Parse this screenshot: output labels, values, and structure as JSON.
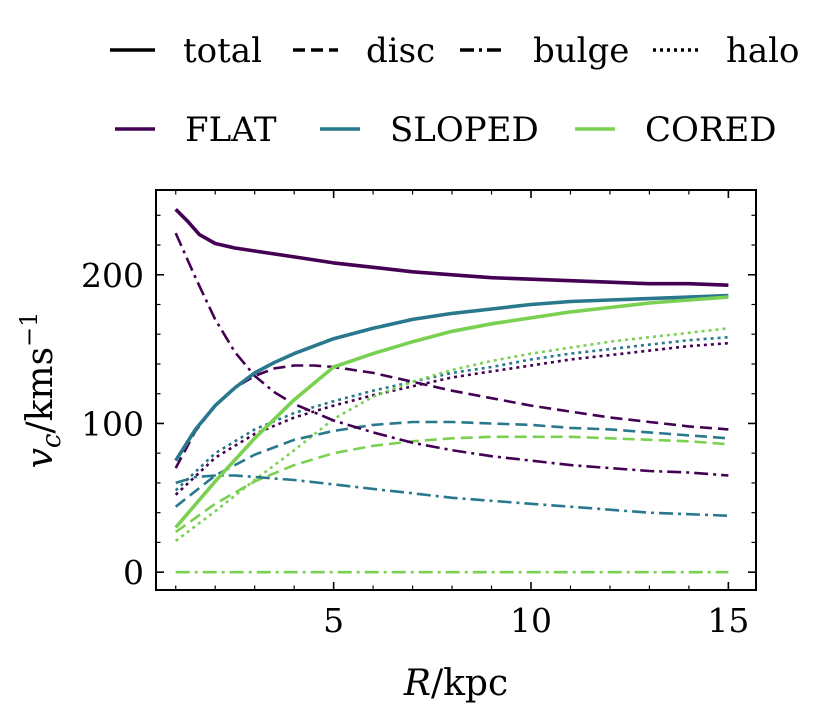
{
  "chart_data": {
    "type": "line",
    "xlabel": {
      "var": "R",
      "unit": "/kpc"
    },
    "ylabel": {
      "var": "v",
      "sub": "c",
      "unit": "/kms",
      "sup": "−1"
    },
    "xlim": [
      0.5,
      15.7
    ],
    "ylim": [
      -12,
      257
    ],
    "xticks": [
      5,
      10,
      15
    ],
    "yticks": [
      0,
      100,
      200
    ],
    "legend_components": [
      {
        "label": "total",
        "style": "solid"
      },
      {
        "label": "disc",
        "style": "dashed"
      },
      {
        "label": "bulge",
        "style": "dashdot"
      },
      {
        "label": "halo",
        "style": "dotted"
      }
    ],
    "legend_models": [
      {
        "label": "FLAT",
        "color": "#440154"
      },
      {
        "label": "SLOPED",
        "color": "#2a788e"
      },
      {
        "label": "CORED",
        "color": "#7ad151"
      }
    ],
    "series": [
      {
        "name": "FLAT halo",
        "model": "FLAT",
        "component": "halo",
        "color": "#440154",
        "style": "dotted",
        "x": [
          1,
          2,
          3,
          4,
          5,
          6,
          7,
          8,
          9,
          10,
          11,
          12,
          13,
          14,
          15
        ],
        "y": [
          52,
          77,
          93,
          104,
          112,
          119,
          125,
          131,
          135,
          139,
          143,
          146,
          149,
          152,
          154
        ]
      },
      {
        "name": "SLOPED halo",
        "model": "SLOPED",
        "component": "halo",
        "color": "#2a788e",
        "style": "dotted",
        "x": [
          1,
          2,
          3,
          4,
          5,
          6,
          7,
          8,
          9,
          10,
          11,
          12,
          13,
          14,
          15
        ],
        "y": [
          55,
          80,
          96,
          107,
          115,
          122,
          128,
          134,
          138,
          143,
          147,
          150,
          153,
          156,
          158
        ]
      },
      {
        "name": "CORED halo",
        "model": "CORED",
        "component": "halo",
        "color": "#7ad151",
        "style": "dotted",
        "x": [
          1,
          2,
          3,
          4,
          5,
          6,
          7,
          8,
          9,
          10,
          11,
          12,
          13,
          14,
          15
        ],
        "y": [
          21,
          41,
          62,
          82,
          103,
          118,
          128,
          136,
          142,
          147,
          151,
          155,
          158,
          161,
          164
        ]
      },
      {
        "name": "FLAT disc",
        "model": "FLAT",
        "component": "disc",
        "color": "#440154",
        "style": "dashed",
        "x": [
          1,
          1.5,
          2,
          2.5,
          3,
          3.5,
          4,
          4.5,
          5,
          6,
          7,
          8,
          9,
          10,
          11,
          12,
          13,
          14,
          15
        ],
        "y": [
          70,
          95,
          112,
          124,
          132,
          137,
          139,
          139,
          138,
          134,
          128,
          122,
          117,
          112,
          108,
          104,
          101,
          98,
          96
        ]
      },
      {
        "name": "SLOPED disc",
        "model": "SLOPED",
        "component": "disc",
        "color": "#2a788e",
        "style": "dashed",
        "x": [
          1,
          2,
          3,
          4,
          5,
          6,
          7,
          8,
          9,
          10,
          11,
          12,
          13,
          14,
          15
        ],
        "y": [
          44,
          65,
          79,
          89,
          95,
          99,
          101,
          101,
          100,
          99,
          97,
          96,
          94,
          92,
          90
        ]
      },
      {
        "name": "CORED disc",
        "model": "CORED",
        "component": "disc",
        "color": "#7ad151",
        "style": "dashed",
        "x": [
          1,
          2,
          3,
          4,
          5,
          6,
          7,
          8,
          9,
          10,
          11,
          12,
          13,
          14,
          15
        ],
        "y": [
          27,
          46,
          61,
          72,
          80,
          85,
          88,
          90,
          91,
          91,
          91,
          90,
          89,
          88,
          86
        ]
      },
      {
        "name": "FLAT bulge",
        "model": "FLAT",
        "component": "bulge",
        "color": "#440154",
        "style": "dashdot",
        "x": [
          1,
          1.5,
          2,
          2.5,
          3,
          3.5,
          4,
          5,
          6,
          7,
          8,
          9,
          10,
          11,
          12,
          13,
          14,
          15
        ],
        "y": [
          228,
          198,
          170,
          148,
          132,
          121,
          113,
          102,
          94,
          87,
          82,
          78,
          75,
          72,
          70,
          68,
          67,
          65
        ]
      },
      {
        "name": "SLOPED bulge",
        "model": "SLOPED",
        "component": "bulge",
        "color": "#2a788e",
        "style": "dashdot",
        "x": [
          1,
          1.5,
          2,
          2.5,
          3,
          4,
          5,
          6,
          7,
          8,
          9,
          10,
          11,
          12,
          13,
          14,
          15
        ],
        "y": [
          60,
          64,
          65,
          65,
          64,
          62,
          59,
          56,
          53,
          50,
          48,
          46,
          44,
          42,
          40,
          39,
          38
        ]
      },
      {
        "name": "CORED bulge",
        "model": "CORED",
        "component": "bulge",
        "color": "#7ad151",
        "style": "dashdot",
        "x": [
          1,
          15
        ],
        "y": [
          0,
          0
        ]
      },
      {
        "name": "FLAT total",
        "model": "FLAT",
        "component": "total",
        "color": "#440154",
        "style": "solid",
        "x": [
          1,
          1.3,
          1.6,
          2,
          2.5,
          3,
          4,
          5,
          6,
          7,
          8,
          9,
          10,
          11,
          12,
          13,
          14,
          15
        ],
        "y": [
          244,
          236,
          227,
          221,
          218,
          216,
          212,
          208,
          205,
          202,
          200,
          198,
          197,
          196,
          195,
          194,
          194,
          193
        ]
      },
      {
        "name": "SLOPED total",
        "model": "SLOPED",
        "component": "total",
        "color": "#2a788e",
        "style": "solid",
        "x": [
          1,
          1.5,
          2,
          2.5,
          3,
          3.5,
          4,
          5,
          6,
          7,
          8,
          9,
          10,
          11,
          12,
          13,
          14,
          15
        ],
        "y": [
          75,
          96,
          112,
          124,
          134,
          141,
          147,
          157,
          164,
          170,
          174,
          177,
          180,
          182,
          183,
          184,
          185,
          186
        ]
      },
      {
        "name": "CORED total",
        "model": "CORED",
        "component": "total",
        "color": "#7ad151",
        "style": "solid",
        "x": [
          1,
          2,
          3,
          4,
          5,
          6,
          7,
          8,
          9,
          10,
          11,
          12,
          13,
          14,
          15
        ],
        "y": [
          30,
          61,
          90,
          116,
          138,
          147,
          155,
          162,
          167,
          171,
          175,
          178,
          181,
          183,
          185
        ]
      }
    ]
  }
}
